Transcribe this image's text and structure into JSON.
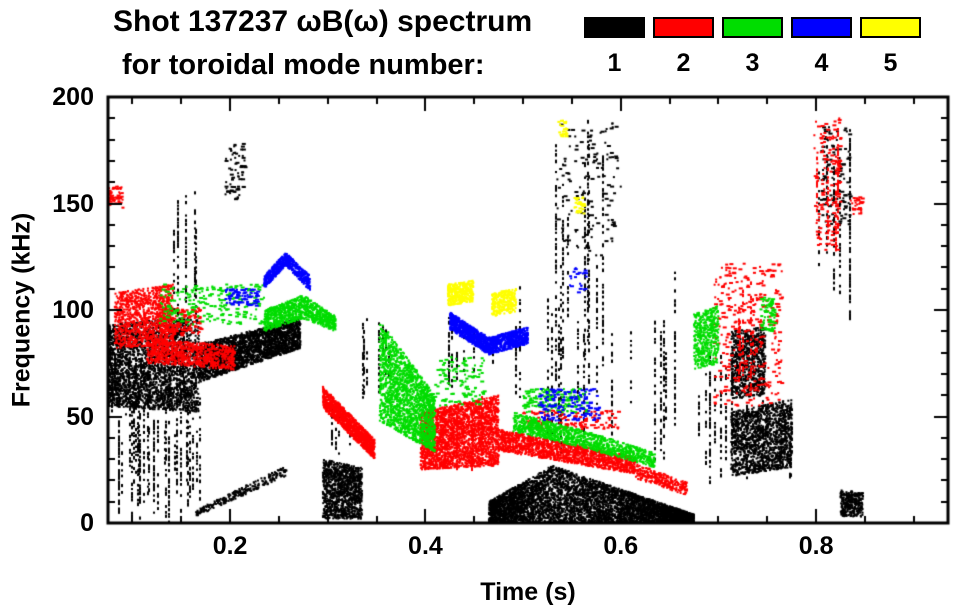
{
  "header": {
    "title": "Shot 137237 ωB(ω) spectrum",
    "subtitle": "for toroidal mode number:"
  },
  "legend": {
    "modes": [
      {
        "label": "1",
        "color": "#000000"
      },
      {
        "label": "2",
        "color": "#ff0000"
      },
      {
        "label": "3",
        "color": "#00dd00"
      },
      {
        "label": "4",
        "color": "#0000ff"
      },
      {
        "label": "5",
        "color": "#ffff00"
      }
    ]
  },
  "chart_data": {
    "type": "scatter",
    "title": "Shot 137237 ωB(ω) spectrum for toroidal mode number 1-5",
    "xlabel": "Time (s)",
    "ylabel": "Frequency (kHz)",
    "xlim": [
      0.075,
      0.935
    ],
    "ylim": [
      0,
      200
    ],
    "xticks": [
      0.2,
      0.4,
      0.6,
      0.8
    ],
    "yticks": [
      0,
      50,
      100,
      150,
      200
    ],
    "x_minor_step": 0.05,
    "y_minor_step": 10,
    "grid": false,
    "legend_position": "top-right",
    "series": [
      {
        "name": "n=1",
        "color": "#000000",
        "clusters": [
          {
            "kind": "scatter",
            "x": [
              0.068,
              0.168
            ],
            "ylo": [
              55,
              52
            ],
            "yhi": [
              93,
              97
            ],
            "n": 2600
          },
          {
            "kind": "streaks",
            "x": [
              0.07,
              0.168
            ],
            "y": [
              50,
              96
            ],
            "n": 25
          },
          {
            "kind": "streaks",
            "x": [
              0.085,
              0.168
            ],
            "y": [
              0,
              68
            ],
            "n": 30
          },
          {
            "kind": "streaks",
            "x": [
              0.13,
              0.168
            ],
            "y": [
              95,
              160
            ],
            "n": 6
          },
          {
            "kind": "scatter",
            "x": [
              0.168,
              0.272
            ],
            "ylo": [
              66,
              82
            ],
            "yhi": [
              84,
              96
            ],
            "n": 2400
          },
          {
            "kind": "scatter",
            "x": [
              0.165,
              0.258
            ],
            "ylo": [
              3,
              22
            ],
            "yhi": [
              6,
              27
            ],
            "n": 260
          },
          {
            "kind": "specks",
            "x": [
              0.195,
              0.215
            ],
            "y": [
              152,
              178
            ],
            "n": 70
          },
          {
            "kind": "scatter",
            "x": [
              0.295,
              0.335
            ],
            "ylo": [
              2,
              2
            ],
            "yhi": [
              30,
              26
            ],
            "n": 1100
          },
          {
            "kind": "streaks",
            "x": [
              0.3,
              0.325
            ],
            "y": [
              28,
              62
            ],
            "n": 5
          },
          {
            "kind": "streaks",
            "x": [
              0.335,
              0.37
            ],
            "y": [
              55,
              100
            ],
            "n": 8
          },
          {
            "kind": "streaks",
            "x": [
              0.42,
              0.47
            ],
            "y": [
              60,
              100
            ],
            "n": 7
          },
          {
            "kind": "scatter",
            "x": [
              0.465,
              0.53
            ],
            "ylo": [
              0,
              0
            ],
            "yhi": [
              10,
              27
            ],
            "n": 1700
          },
          {
            "kind": "scatter",
            "x": [
              0.53,
              0.675
            ],
            "ylo": [
              0,
              0
            ],
            "yhi": [
              27,
              4
            ],
            "n": 3200
          },
          {
            "kind": "streaks",
            "x": [
              0.49,
              0.66
            ],
            "y": [
              28,
              125
            ],
            "n": 16
          },
          {
            "kind": "streaks",
            "x": [
              0.52,
              0.585
            ],
            "y": [
              60,
              192
            ],
            "n": 7
          },
          {
            "kind": "specks",
            "x": [
              0.535,
              0.6
            ],
            "y": [
              125,
              188
            ],
            "n": 130
          },
          {
            "kind": "streaks",
            "x": [
              0.675,
              0.715
            ],
            "y": [
              15,
              92
            ],
            "n": 8
          },
          {
            "kind": "scatter",
            "x": [
              0.713,
              0.775
            ],
            "ylo": [
              22,
              26
            ],
            "yhi": [
              52,
              58
            ],
            "n": 1500
          },
          {
            "kind": "streaks",
            "x": [
              0.715,
              0.775
            ],
            "y": [
              20,
              60
            ],
            "n": 8
          },
          {
            "kind": "scatter",
            "x": [
              0.713,
              0.748
            ],
            "ylo": [
              58,
              60
            ],
            "yhi": [
              90,
              92
            ],
            "n": 800
          },
          {
            "kind": "streaks",
            "x": [
              0.8,
              0.835
            ],
            "y": [
              95,
              190
            ],
            "n": 6
          },
          {
            "kind": "specks",
            "x": [
              0.805,
              0.835
            ],
            "y": [
              140,
              186
            ],
            "n": 110
          },
          {
            "kind": "scatter",
            "x": [
              0.825,
              0.848
            ],
            "ylo": [
              3,
              3
            ],
            "yhi": [
              16,
              14
            ],
            "n": 320
          }
        ]
      },
      {
        "name": "n=2",
        "color": "#ff0000",
        "clusters": [
          {
            "kind": "specks",
            "x": [
              0.073,
              0.09
            ],
            "y": [
              148,
              158
            ],
            "n": 55
          },
          {
            "kind": "scatter",
            "x": [
              0.082,
              0.142
            ],
            "ylo": [
              82,
              84
            ],
            "yhi": [
              108,
              112
            ],
            "n": 1050
          },
          {
            "kind": "scatter",
            "x": [
              0.115,
              0.205
            ],
            "ylo": [
              75,
              72
            ],
            "yhi": [
              87,
              83
            ],
            "n": 850
          },
          {
            "kind": "specks",
            "x": [
              0.125,
              0.17
            ],
            "y": [
              88,
              101
            ],
            "n": 160
          },
          {
            "kind": "scatter",
            "x": [
              0.295,
              0.348
            ],
            "ylo": [
              54,
              30
            ],
            "yhi": [
              64,
              39
            ],
            "n": 1150
          },
          {
            "kind": "scatter",
            "x": [
              0.395,
              0.475
            ],
            "ylo": [
              25,
              27
            ],
            "yhi": [
              52,
              60
            ],
            "n": 2500
          },
          {
            "kind": "streaks",
            "x": [
              0.4,
              0.47
            ],
            "y": [
              24,
              62
            ],
            "n": 10
          },
          {
            "kind": "scatter",
            "x": [
              0.475,
              0.615
            ],
            "ylo": [
              34,
              23
            ],
            "yhi": [
              44,
              31
            ],
            "n": 1500
          },
          {
            "kind": "specks",
            "x": [
              0.5,
              0.6
            ],
            "y": [
              44,
              53
            ],
            "n": 120
          },
          {
            "kind": "scatter",
            "x": [
              0.615,
              0.668
            ],
            "ylo": [
              21,
              13
            ],
            "yhi": [
              28,
              19
            ],
            "n": 280
          },
          {
            "kind": "specks",
            "x": [
              0.695,
              0.765
            ],
            "y": [
              55,
              122
            ],
            "n": 330
          },
          {
            "kind": "streaks",
            "x": [
              0.71,
              0.755
            ],
            "y": [
              58,
              120
            ],
            "n": 5
          },
          {
            "kind": "streaks",
            "x": [
              0.795,
              0.822
            ],
            "y": [
              125,
              190
            ],
            "n": 5
          },
          {
            "kind": "specks",
            "x": [
              0.798,
              0.825
            ],
            "y": [
              128,
              190
            ],
            "n": 140
          },
          {
            "kind": "specks",
            "x": [
              0.835,
              0.847
            ],
            "y": [
              145,
              153
            ],
            "n": 28
          }
        ]
      },
      {
        "name": "n=3",
        "color": "#00dd00",
        "clusters": [
          {
            "kind": "specks",
            "x": [
              0.128,
              0.235
            ],
            "y": [
              93,
              112
            ],
            "n": 210
          },
          {
            "kind": "scatter",
            "x": [
              0.235,
              0.275
            ],
            "ylo": [
              90,
              96
            ],
            "yhi": [
              100,
              107
            ],
            "n": 520
          },
          {
            "kind": "scatter",
            "x": [
              0.275,
              0.308
            ],
            "ylo": [
              96,
              90
            ],
            "yhi": [
              107,
              97
            ],
            "n": 420
          },
          {
            "kind": "scatter",
            "x": [
              0.353,
              0.41
            ],
            "ylo": [
              48,
              33
            ],
            "yhi": [
              95,
              60
            ],
            "n": 1900
          },
          {
            "kind": "specks",
            "x": [
              0.41,
              0.46
            ],
            "y": [
              55,
              78
            ],
            "n": 110
          },
          {
            "kind": "scatter",
            "x": [
              0.49,
              0.565
            ],
            "ylo": [
              43,
              35
            ],
            "yhi": [
              52,
              43
            ],
            "n": 650
          },
          {
            "kind": "scatter",
            "x": [
              0.565,
              0.635
            ],
            "ylo": [
              35,
              26
            ],
            "yhi": [
              43,
              33
            ],
            "n": 520
          },
          {
            "kind": "specks",
            "x": [
              0.5,
              0.565
            ],
            "y": [
              52,
              63
            ],
            "n": 150
          },
          {
            "kind": "scatter",
            "x": [
              0.675,
              0.7
            ],
            "ylo": [
              72,
              75
            ],
            "yhi": [
              98,
              102
            ],
            "n": 480
          },
          {
            "kind": "specks",
            "x": [
              0.743,
              0.758
            ],
            "y": [
              90,
              106
            ],
            "n": 70
          }
        ]
      },
      {
        "name": "n=4",
        "color": "#0000ff",
        "clusters": [
          {
            "kind": "specks",
            "x": [
              0.195,
              0.228
            ],
            "y": [
              102,
              110
            ],
            "n": 85
          },
          {
            "kind": "scatter",
            "x": [
              0.235,
              0.257
            ],
            "ylo": [
              110,
              121
            ],
            "yhi": [
              116,
              127
            ],
            "n": 300
          },
          {
            "kind": "scatter",
            "x": [
              0.257,
              0.282
            ],
            "ylo": [
              121,
              109
            ],
            "yhi": [
              127,
              116
            ],
            "n": 300
          },
          {
            "kind": "scatter",
            "x": [
              0.425,
              0.465
            ],
            "ylo": [
              91,
              79
            ],
            "yhi": [
              99,
              87
            ],
            "n": 750
          },
          {
            "kind": "scatter",
            "x": [
              0.465,
              0.505
            ],
            "ylo": [
              79,
              84
            ],
            "yhi": [
              87,
              92
            ],
            "n": 620
          },
          {
            "kind": "specks",
            "x": [
              0.515,
              0.578
            ],
            "y": [
              48,
              63
            ],
            "n": 150
          },
          {
            "kind": "specks",
            "x": [
              0.548,
              0.565
            ],
            "y": [
              108,
              120
            ],
            "n": 22
          }
        ]
      },
      {
        "name": "n=5",
        "color": "#ffff00",
        "clusters": [
          {
            "kind": "scatter",
            "x": [
              0.423,
              0.449
            ],
            "ylo": [
              102,
              104
            ],
            "yhi": [
              112,
              114
            ],
            "n": 380
          },
          {
            "kind": "scatter",
            "x": [
              0.468,
              0.493
            ],
            "ylo": [
              97,
              99
            ],
            "yhi": [
              108,
              110
            ],
            "n": 320
          },
          {
            "kind": "specks",
            "x": [
              0.536,
              0.545
            ],
            "y": [
              181,
              189
            ],
            "n": 26
          },
          {
            "kind": "specks",
            "x": [
              0.552,
              0.562
            ],
            "y": [
              145,
              153
            ],
            "n": 30
          }
        ]
      }
    ]
  }
}
